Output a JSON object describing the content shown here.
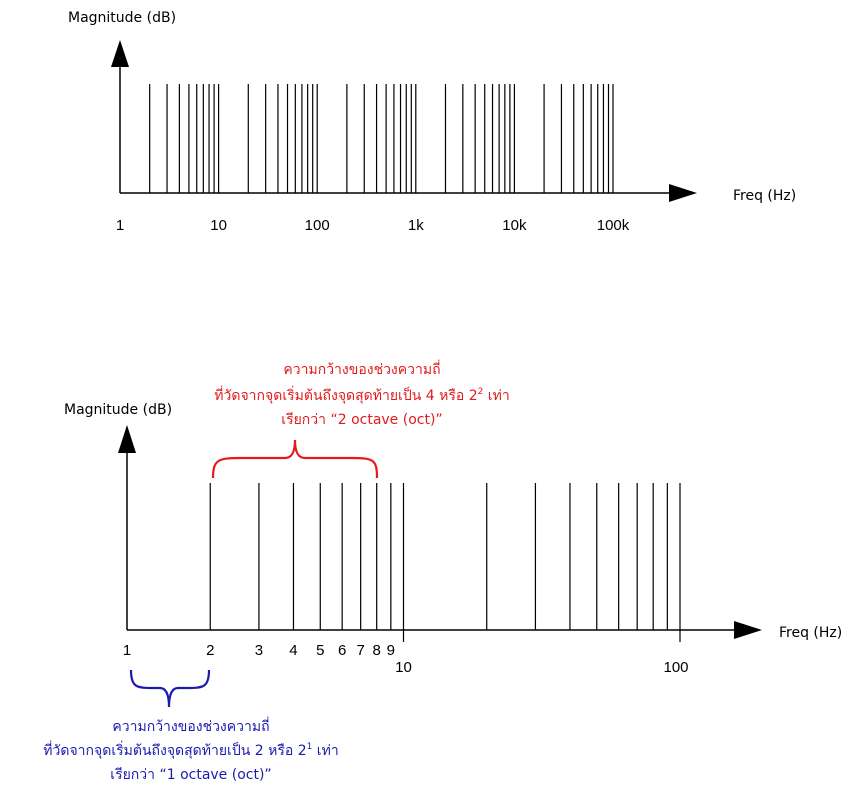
{
  "colors": {
    "axis": "#000000",
    "red": "#e41b1b",
    "blue": "#1b1bb0"
  },
  "chart_data": [
    {
      "type": "log-scale diagram",
      "ylabel": "Magnitude (dB)",
      "xlabel": "Freq (Hz)",
      "x_scale": "log",
      "xlim": [
        1,
        100000
      ],
      "tick_labels": [
        "1",
        "10",
        "100",
        "1k",
        "10k",
        "100k"
      ],
      "tick_values": [
        1,
        10,
        100,
        1000,
        10000,
        100000
      ],
      "lines_x": [
        2,
        3,
        4,
        5,
        6,
        7,
        8,
        9,
        10,
        20,
        30,
        40,
        50,
        60,
        70,
        80,
        90,
        100,
        200,
        300,
        400,
        500,
        600,
        700,
        800,
        900,
        1000,
        2000,
        3000,
        4000,
        5000,
        6000,
        7000,
        8000,
        9000,
        10000,
        20000,
        30000,
        40000,
        50000,
        60000,
        70000,
        80000,
        90000,
        100000
      ]
    },
    {
      "type": "log-scale diagram",
      "ylabel": "Magnitude (dB)",
      "xlabel": "Freq (Hz)",
      "x_scale": "log",
      "xlim": [
        1,
        100
      ],
      "tick_labels": [
        "1",
        "2",
        "3",
        "4",
        "5",
        "6",
        "7",
        "8",
        "9",
        "10",
        "100"
      ],
      "tick_values": [
        1,
        2,
        3,
        4,
        5,
        6,
        7,
        8,
        9,
        10,
        100
      ],
      "lines_x": [
        2,
        3,
        4,
        5,
        6,
        7,
        8,
        9,
        10,
        20,
        30,
        40,
        50,
        60,
        70,
        80,
        90,
        100
      ]
    }
  ],
  "annotations": {
    "red": {
      "line1": "ความกว้างของช่วงความถี่",
      "line2_pre": "ที่วัดจากจุดเริ่มต้นถึงจุดสุดท้ายเป็น 4 หรือ 2",
      "line2_sup": "2",
      "line2_post": " เท่า",
      "line3": "เรียกว่า “2 octave (oct)”"
    },
    "blue": {
      "line1": "ความกว้างของช่วงความถี่",
      "line2_pre": "ที่วัดจากจุดเริ่มต้นถึงจุดสุดท้ายเป็น 2 หรือ 2",
      "line2_sup": "1",
      "line2_post": " เท่า",
      "line3": "เรียกว่า “1 octave (oct)”"
    }
  }
}
